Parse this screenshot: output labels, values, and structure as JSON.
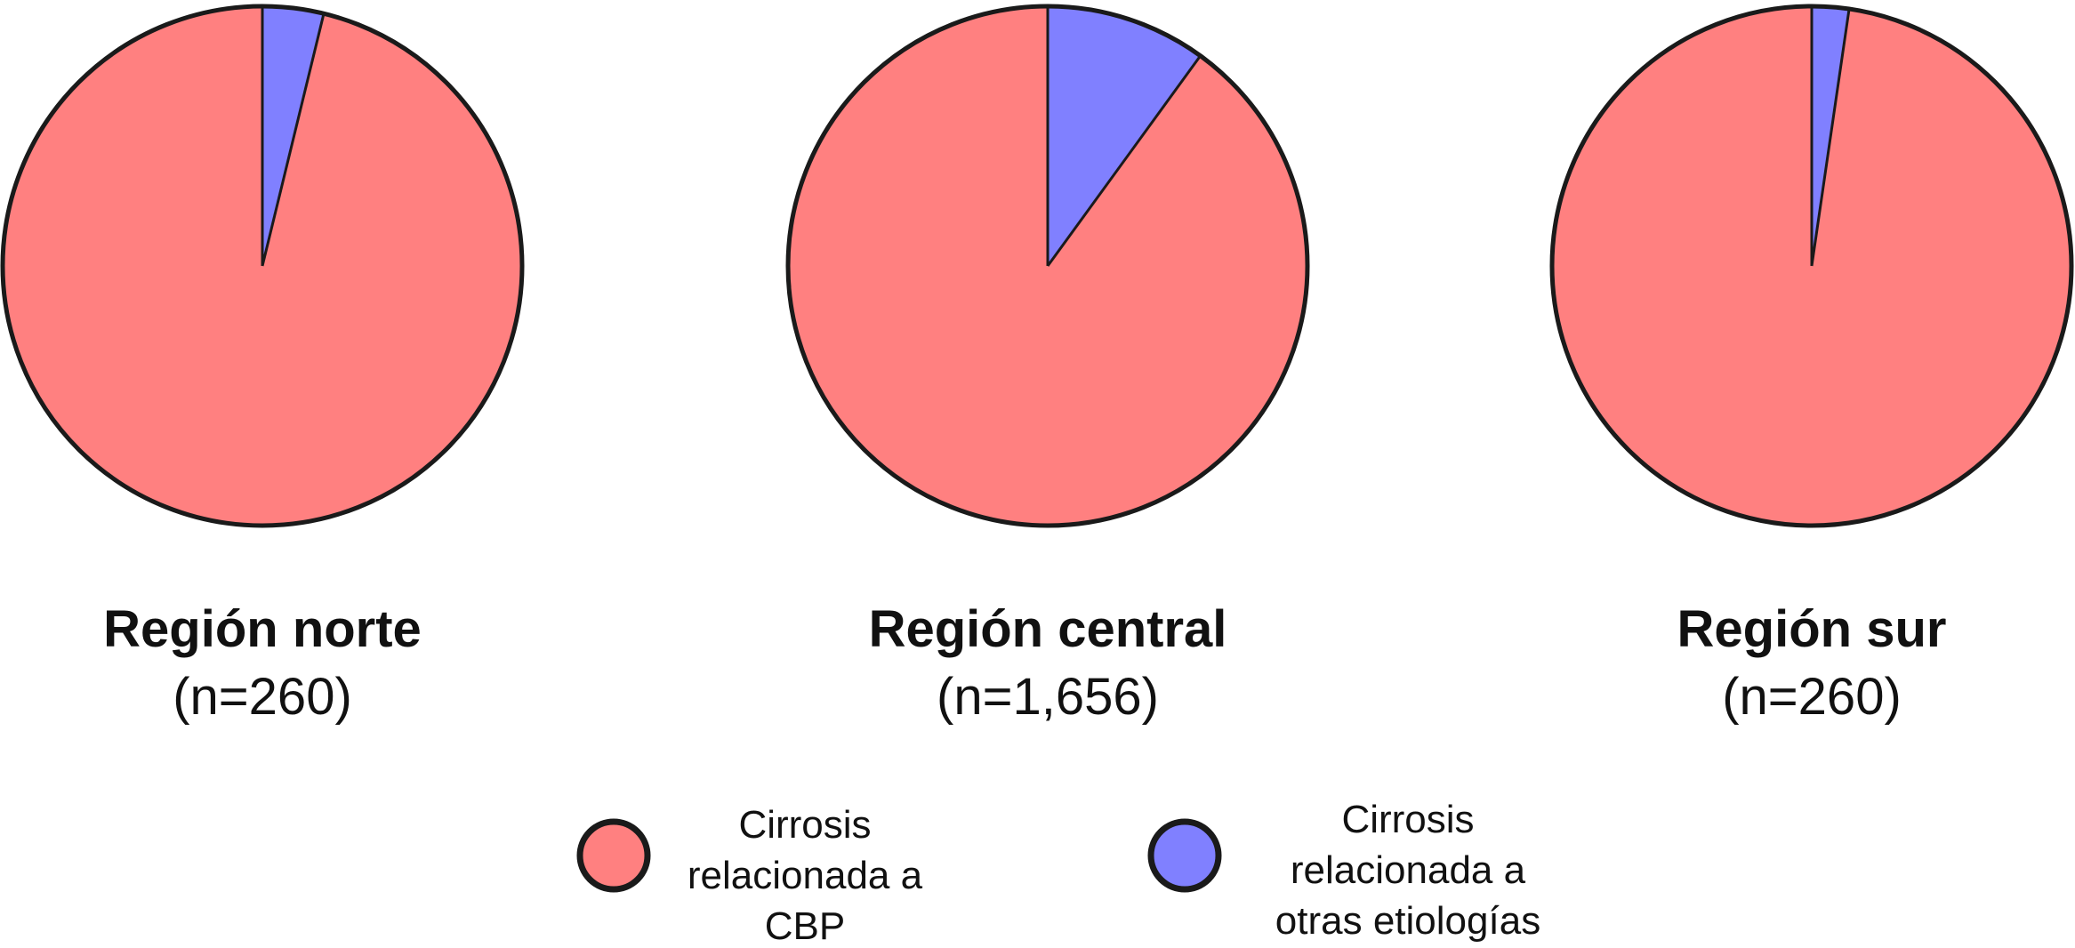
{
  "chart_data": {
    "type": "pie",
    "categories": [
      "Cirrosis relacionada a CBP",
      "Cirrosis relacionada a otras etiologías"
    ],
    "colors": [
      "#ff8080",
      "#8080ff"
    ],
    "pies": [
      {
        "title": "Región norte",
        "subtitle": "(n=260)",
        "values": [
          96.2,
          3.8
        ]
      },
      {
        "title": "Región central",
        "subtitle": "(n=1,656)",
        "values": [
          90.0,
          10.0
        ]
      },
      {
        "title": "Región sur",
        "subtitle": "(n=260)",
        "values": [
          97.7,
          2.3
        ]
      }
    ],
    "legend": {
      "placement": "bottom-center",
      "items": [
        {
          "lines": [
            "Cirrosis",
            "relacionada a",
            "CBP"
          ],
          "color": "#ff8080"
        },
        {
          "lines": [
            "Cirrosis",
            "relacionada a",
            "otras etiologías"
          ],
          "color": "#8080ff"
        }
      ]
    }
  }
}
